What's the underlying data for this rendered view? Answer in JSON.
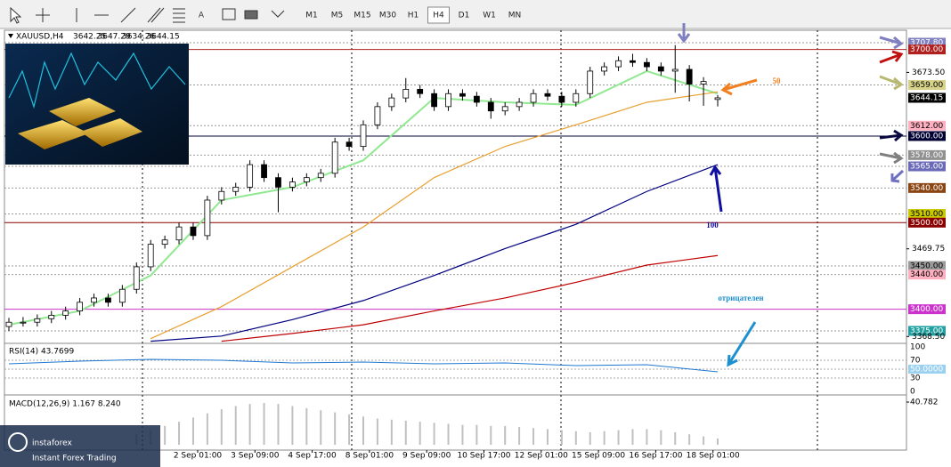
{
  "toolbar": {
    "timeframes": [
      "M1",
      "M5",
      "M15",
      "M30",
      "H1",
      "H4",
      "D1",
      "W1",
      "MN"
    ],
    "active": 5
  },
  "symbol_info": {
    "symbol": "XAUUSD,H4",
    "ohlc": [
      3642.25,
      3647.29,
      3634.26,
      3644.15
    ]
  },
  "chart_data": {
    "type": "candlestick",
    "ylim": [
      3361.6,
      3722.2
    ],
    "yticks": [
      {
        "value": 3673.5,
        "label": "3673.50"
      },
      {
        "value": 3469.75,
        "label": "3469.75"
      },
      {
        "value": 3368.5,
        "label": "3368.50"
      }
    ],
    "candles": [
      [
        3380,
        3390,
        3375,
        3385
      ],
      [
        3385,
        3391,
        3380,
        3385
      ],
      [
        3385,
        3394,
        3380,
        3389
      ],
      [
        3389,
        3398,
        3384,
        3393
      ],
      [
        3393,
        3403,
        3388,
        3398
      ],
      [
        3398,
        3413,
        3393,
        3408
      ],
      [
        3408,
        3418,
        3403,
        3413
      ],
      [
        3413,
        3418,
        3403,
        3408
      ],
      [
        3408,
        3428,
        3403,
        3423
      ],
      [
        3423,
        3454,
        3418,
        3449
      ],
      [
        3449,
        3480,
        3444,
        3475
      ],
      [
        3475,
        3485,
        3470,
        3480
      ],
      [
        3480,
        3500,
        3475,
        3495
      ],
      [
        3495,
        3500,
        3480,
        3485
      ],
      [
        3485,
        3531,
        3480,
        3526
      ],
      [
        3526,
        3541,
        3521,
        3536
      ],
      [
        3536,
        3546,
        3531,
        3541
      ],
      [
        3541,
        3572,
        3536,
        3567
      ],
      [
        3567,
        3572,
        3547,
        3552
      ],
      [
        3552,
        3557,
        3512,
        3541
      ],
      [
        3541,
        3552,
        3536,
        3547
      ],
      [
        3547,
        3557,
        3542,
        3552
      ],
      [
        3552,
        3562,
        3547,
        3557
      ],
      [
        3557,
        3598,
        3552,
        3593
      ],
      [
        3593,
        3598,
        3583,
        3588
      ],
      [
        3588,
        3618,
        3583,
        3613
      ],
      [
        3613,
        3639,
        3608,
        3634
      ],
      [
        3634,
        3649,
        3629,
        3644
      ],
      [
        3644,
        3667,
        3639,
        3654
      ],
      [
        3654,
        3659,
        3644,
        3649
      ],
      [
        3649,
        3654,
        3629,
        3634
      ],
      [
        3634,
        3654,
        3629,
        3649
      ],
      [
        3649,
        3654,
        3641,
        3646
      ],
      [
        3646,
        3651,
        3634,
        3639
      ],
      [
        3639,
        3644,
        3620,
        3629
      ],
      [
        3629,
        3639,
        3624,
        3634
      ],
      [
        3634,
        3644,
        3629,
        3639
      ],
      [
        3639,
        3654,
        3634,
        3649
      ],
      [
        3649,
        3654,
        3641,
        3646
      ],
      [
        3646,
        3651,
        3634,
        3639
      ],
      [
        3639,
        3654,
        3634,
        3649
      ],
      [
        3649,
        3680,
        3644,
        3675
      ],
      [
        3675,
        3685,
        3670,
        3680
      ],
      [
        3680,
        3692,
        3675,
        3687
      ],
      [
        3687,
        3695,
        3680,
        3685
      ],
      [
        3685,
        3690,
        3675,
        3680
      ],
      [
        3680,
        3685,
        3670,
        3675
      ],
      [
        3675,
        3705,
        3650,
        3677
      ],
      [
        3677,
        3682,
        3640,
        3660
      ],
      [
        3660,
        3668,
        3635,
        3663
      ],
      [
        3642.25,
        3647.29,
        3634.26,
        3644.15
      ]
    ],
    "up_color": "#ffffff",
    "down_color": "#000000",
    "ma_x": [
      0,
      5,
      10,
      15,
      20,
      25,
      30,
      35,
      40,
      45,
      50
    ],
    "moving_averages": [
      {
        "color": "#90e890",
        "values": [
          3382,
          3398,
          3439,
          3526,
          3541,
          3572,
          3644,
          3639,
          3636,
          3675,
          3649
        ]
      },
      {
        "color": "#e8a030",
        "values": [
          null,
          null,
          3366,
          3403,
          3449,
          3495,
          3552,
          3588,
          3613,
          3639,
          3651
        ]
      },
      {
        "color": "#000080",
        "values": [
          null,
          null,
          3363,
          3369,
          3388,
          3410,
          3439,
          3470,
          3498,
          3536,
          3567
        ]
      },
      {
        "color": "#c00000",
        "values": [
          null,
          null,
          null,
          3363,
          3372,
          3382,
          3398,
          3413,
          3431,
          3451,
          3462
        ]
      }
    ],
    "price_levels": [
      {
        "value": 3707.8,
        "label": "3707.80",
        "color": "#8080c0",
        "style": "dotted"
      },
      {
        "value": 3700,
        "label": "3700.00",
        "color": "#b0201e",
        "style": "solid"
      },
      {
        "value": 3659,
        "label": "3659.00",
        "color": "#d7d28a",
        "style": "dotted"
      },
      {
        "value": 3612,
        "label": "3612.00",
        "color": "#ffb0c0",
        "style": "dotted"
      },
      {
        "value": 3600,
        "label": "3600.00",
        "color": "#000033",
        "style": "solid"
      },
      {
        "value": 3578,
        "label": "3578.00",
        "color": "#909090",
        "style": "dotted"
      },
      {
        "value": 3565,
        "label": "3565.00",
        "color": "#6a6ab8",
        "style": "dotted"
      },
      {
        "value": 3540,
        "label": "3540.00",
        "color": "#8b4513",
        "style": "dotted"
      },
      {
        "value": 3510,
        "label": "3510.00",
        "color": "#c8c800",
        "style": "dotted"
      },
      {
        "value": 3500,
        "label": "3500.00",
        "color": "#8b0000",
        "style": "solid"
      },
      {
        "value": 3450,
        "label": "3450.00",
        "color": "#9a9a9a",
        "style": "dotted"
      },
      {
        "value": 3440,
        "label": "3440.00",
        "color": "#ffb0c0",
        "style": "dotted"
      },
      {
        "value": 3400,
        "label": "3400.00",
        "color": "#cc33cc",
        "style": "solid"
      },
      {
        "value": 3375,
        "label": "3375.00",
        "color": "#20a0a0",
        "style": "dotted"
      }
    ],
    "annotations": [
      {
        "text": "50",
        "color": "#f08020"
      },
      {
        "text": "100",
        "color": "#1010a0"
      },
      {
        "text": "отрицателен",
        "color": "#1e90d0"
      }
    ],
    "x_labels": [
      "2 Sep 01:00",
      "3 Sep 09:00",
      "4 Sep 17:00",
      "8 Sep 01:00",
      "9 Sep 09:00",
      "10 Sep 17:00",
      "12 Sep 01:00",
      "15 Sep 09:00",
      "16 Sep 17:00",
      "18 Sep 01:00"
    ],
    "rsi": {
      "label": "RSI(14) 43.7699",
      "ylim": [
        0,
        100
      ],
      "yticks": [
        100,
        70,
        {
          "value": 50,
          "label": "50.0000"
        },
        30,
        0
      ],
      "color": "#1e78d0",
      "values": [
        62,
        68,
        72,
        70,
        64,
        66,
        62,
        64,
        58,
        60,
        44
      ]
    },
    "macd": {
      "label": "MACD(12,26,9) 1.167 8.240",
      "ylim": [
        0,
        45.9
      ],
      "yticks": [
        {
          "value": 40.782,
          "label": "40.782"
        }
      ],
      "color": "#c0c0c0",
      "values": [
        null,
        null,
        null,
        null,
        null,
        null,
        null,
        null,
        null,
        10,
        14,
        18,
        22,
        26,
        30,
        34,
        37,
        39,
        40,
        39,
        37,
        35,
        33,
        31,
        29,
        27,
        25,
        24,
        23,
        22,
        21,
        20,
        19,
        19,
        18,
        18,
        17,
        16,
        15,
        14,
        13,
        12,
        13,
        14,
        15,
        15,
        14,
        12,
        10,
        8,
        6
      ]
    }
  },
  "watermark": {
    "brand": "instaforex",
    "tagline": "Instant Forex Trading"
  }
}
